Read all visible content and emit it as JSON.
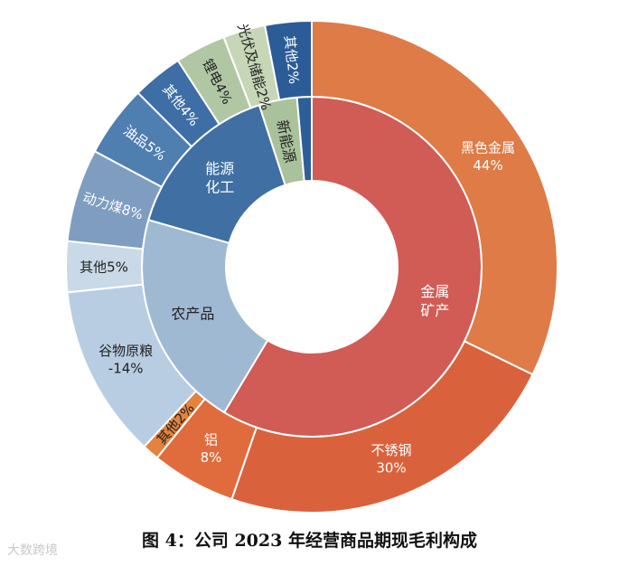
{
  "caption": "图 4：公司 2023 年经营商品期现毛利构成",
  "watermark": "大数跨境",
  "chart_data": {
    "type": "sunburst",
    "title": "图 4：公司 2023 年经营商品期现毛利构成",
    "inner_ring": [
      {
        "name": "金属矿产",
        "label_lines": [
          "金属",
          "矿产"
        ],
        "start": 0,
        "end": 211,
        "color": "#d05c55",
        "text_color": "#ffffff"
      },
      {
        "name": "农产品",
        "label_lines": [
          "农产品"
        ],
        "start": 211,
        "end": 286,
        "color": "#9fb9d3",
        "text_color": "#222222"
      },
      {
        "name": "能源化工",
        "label_lines": [
          "能源",
          "化工"
        ],
        "start": 286,
        "end": 342,
        "color": "#3f6fa3",
        "text_color": "#ffffff"
      },
      {
        "name": "新能源",
        "label_lines": [
          "新能源"
        ],
        "start": 342,
        "end": 355,
        "color": "#a9c29c",
        "text_color": "#222222"
      },
      {
        "name": "其他",
        "label_lines": [
          ""
        ],
        "start": 355,
        "end": 360,
        "color": "#2e5e97",
        "text_color": "#ffffff"
      }
    ],
    "outer_ring": [
      {
        "name": "黑色金属",
        "pct": "44%",
        "label_lines": [
          "黑色金属",
          "44%"
        ],
        "start": 0,
        "end": 116,
        "color": "#de7b46",
        "text_color": "#ffffff"
      },
      {
        "name": "不锈钢",
        "pct": "30%",
        "label_lines": [
          "不锈钢",
          "30%"
        ],
        "start": 116,
        "end": 199,
        "color": "#d9623d",
        "text_color": "#ffffff"
      },
      {
        "name": "铝",
        "pct": "8%",
        "label_lines": [
          "铝",
          "8%"
        ],
        "start": 199,
        "end": 219,
        "color": "#e06c3e",
        "text_color": "#ffffff"
      },
      {
        "name": "其他",
        "pct": "2%",
        "label_lines": [
          "其他2%"
        ],
        "start": 219,
        "end": 223,
        "color": "#e4833f",
        "text_color": "#222222"
      },
      {
        "name": "谷物原粮",
        "pct": "-14%",
        "label_lines": [
          "谷物原粮",
          "-14%"
        ],
        "start": 223,
        "end": 264,
        "color": "#b8cde1",
        "text_color": "#222222"
      },
      {
        "name": "其他",
        "pct": "5%",
        "label_lines": [
          "其他5%"
        ],
        "start": 264,
        "end": 276,
        "color": "#c9d9e8",
        "text_color": "#222222"
      },
      {
        "name": "动力煤",
        "pct": "8%",
        "label_lines": [
          "动力煤8%"
        ],
        "start": 276,
        "end": 298,
        "color": "#7e9dc0",
        "text_color": "#ffffff"
      },
      {
        "name": "油品",
        "pct": "5%",
        "label_lines": [
          "油品5%"
        ],
        "start": 298,
        "end": 315,
        "color": "#4f7eb1",
        "text_color": "#ffffff"
      },
      {
        "name": "其他",
        "pct": "4%",
        "label_lines": [
          "其他4%"
        ],
        "start": 315,
        "end": 327,
        "color": "#3d6ea5",
        "text_color": "#ffffff"
      },
      {
        "name": "锂电",
        "pct": "4%",
        "label_lines": [
          "锂电4%"
        ],
        "start": 327,
        "end": 339,
        "color": "#b1c7a3",
        "text_color": "#222222"
      },
      {
        "name": "光伏及储能",
        "pct": "2%",
        "label_lines": [
          "光伏及储能2%"
        ],
        "start": 339,
        "end": 349,
        "color": "#c6d6b6",
        "text_color": "#222222"
      },
      {
        "name": "其他",
        "pct": "2%",
        "label_lines": [
          "其他2%"
        ],
        "start": 349,
        "end": 360,
        "color": "#2b5c97",
        "text_color": "#ffffff"
      }
    ]
  }
}
